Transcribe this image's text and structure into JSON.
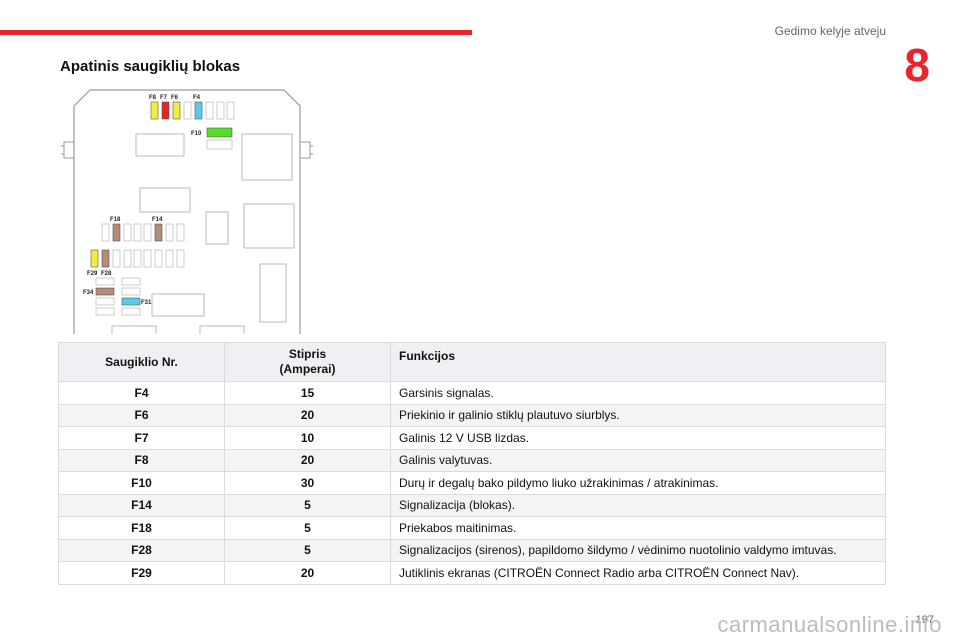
{
  "header": {
    "chapter_title": "Gedimo kelyje atveju",
    "chapter_number": "8",
    "accent_color": "#e8242c"
  },
  "section_title": "Apatinis saugiklių blokas",
  "diagram": {
    "labels": {
      "f8": "F8",
      "f7": "F7",
      "f6": "F6",
      "f4": "F4",
      "f10": "F10",
      "f18": "F18",
      "f14": "F14",
      "f29": "F29",
      "f28": "F28",
      "f34": "F34",
      "f31": "F31"
    },
    "fuse_colors": {
      "yellow": "#f2ee3a",
      "red": "#e32626",
      "blue": "#5cc8ea",
      "green": "#55dd2a",
      "brown": "#b88a78"
    }
  },
  "table": {
    "headers": {
      "no": "Saugiklio Nr.",
      "amp_line1": "Stipris",
      "amp_line2": "(Amperai)",
      "function": "Funkcijos"
    },
    "rows": [
      {
        "no": "F4",
        "amp": "15",
        "fn": "Garsinis signalas."
      },
      {
        "no": "F6",
        "amp": "20",
        "fn": "Priekinio ir galinio stiklų plautuvo siurblys."
      },
      {
        "no": "F7",
        "amp": "10",
        "fn": "Galinis 12 V USB lizdas."
      },
      {
        "no": "F8",
        "amp": "20",
        "fn": "Galinis valytuvas."
      },
      {
        "no": "F10",
        "amp": "30",
        "fn": "Durų ir degalų bako pildymo liuko užrakinimas / atrakinimas."
      },
      {
        "no": "F14",
        "amp": "5",
        "fn": "Signalizacija (blokas)."
      },
      {
        "no": "F18",
        "amp": "5",
        "fn": "Priekabos maitinimas."
      },
      {
        "no": "F28",
        "amp": "5",
        "fn": "Signalizacijos (sirenos), papildomo šildymo / vėdinimo nuotolinio valdymo imtuvas."
      },
      {
        "no": "F29",
        "amp": "20",
        "fn": "Jutiklinis ekranas (CITROËN Connect Radio arba CITROËN Connect Nav)."
      }
    ]
  },
  "footer": {
    "page_number": "197",
    "watermark": "carmanualsonline.info"
  }
}
